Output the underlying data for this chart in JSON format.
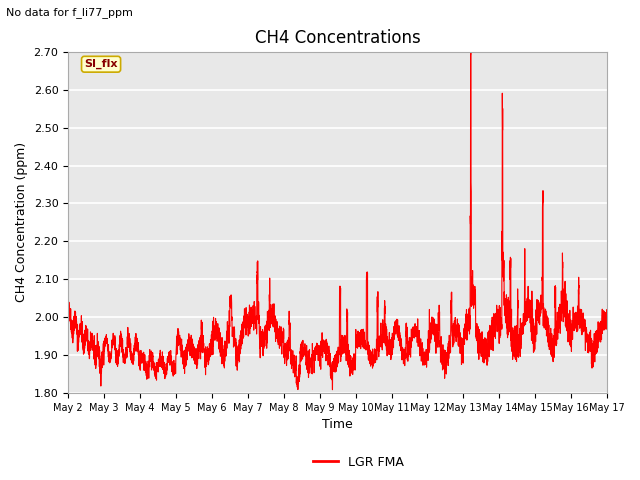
{
  "title": "CH4 Concentrations",
  "no_data_text": "No data for f_li77_ppm",
  "xlabel": "Time",
  "ylabel": "CH4 Concentration (ppm)",
  "ylim": [
    1.8,
    2.7
  ],
  "yticks": [
    1.8,
    1.9,
    2.0,
    2.1,
    2.2,
    2.3,
    2.4,
    2.5,
    2.6,
    2.7
  ],
  "xtick_labels": [
    "May 2",
    "May 3",
    "May 4",
    "May 5",
    "May 6",
    "May 7",
    "May 8",
    "May 9",
    "May 10",
    "May 11",
    "May 12",
    "May 13",
    "May 14",
    "May 15",
    "May 16",
    "May 17"
  ],
  "line_color": "#ff0000",
  "line_width": 0.8,
  "legend_label": "LGR FMA",
  "legend_line_color": "#ff0000",
  "si_flx_label": "SI_flx",
  "si_flx_bg": "#ffffcc",
  "si_flx_border": "#ccaa00",
  "fig_bg_color": "#ffffff",
  "plot_bg": "#e8e8e8",
  "grid_color": "#ffffff",
  "title_fontsize": 12,
  "axis_label_fontsize": 9,
  "tick_fontsize": 8
}
